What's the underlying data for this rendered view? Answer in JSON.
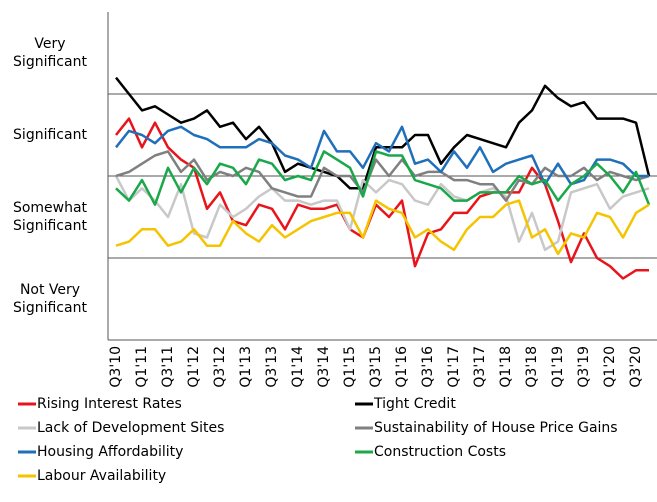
{
  "chart_data": {
    "type": "line",
    "categories": [
      "Q3'10",
      null,
      "Q1'11",
      null,
      "Q3'11",
      null,
      "Q1'12",
      null,
      "Q3'12",
      null,
      "Q1'13",
      null,
      "Q3'13",
      null,
      "Q1'14",
      null,
      "Q3'14",
      null,
      "Q1'15",
      null,
      "Q3'15",
      null,
      "Q1'16",
      null,
      "Q3'16",
      null,
      "Q1'17",
      null,
      "Q3'17",
      null,
      "Q1'18",
      null,
      "Q3'18",
      null,
      "Q1'19",
      null,
      "Q3'19",
      null,
      "Q1'20",
      null,
      "Q3'20",
      null
    ],
    "ylim": [
      0.5,
      4.5
    ],
    "yticks": [
      {
        "value": 1,
        "label": "Not Very Significant"
      },
      {
        "value": 2,
        "label": "Somewhat Significant"
      },
      {
        "value": 3,
        "label": "Significant"
      },
      {
        "value": 4,
        "label": "Very Significant"
      }
    ],
    "grid": true,
    "series": [
      {
        "name": "Rising Interest Rates",
        "color": "#e8141b",
        "values": [
          3.0,
          3.2,
          2.85,
          3.15,
          2.85,
          2.7,
          2.6,
          2.1,
          2.3,
          1.95,
          1.9,
          2.15,
          2.1,
          1.85,
          2.15,
          2.1,
          2.1,
          2.15,
          1.85,
          1.75,
          2.15,
          2.0,
          2.2,
          1.4,
          1.8,
          1.85,
          2.05,
          2.05,
          2.25,
          2.3,
          2.3,
          2.3,
          2.6,
          2.4,
          1.95,
          1.45,
          1.8,
          1.5,
          1.4,
          1.25,
          1.35,
          1.35
        ]
      },
      {
        "name": "Tight Credit",
        "color": "#000000",
        "values": [
          3.7,
          3.5,
          3.3,
          3.35,
          3.25,
          3.15,
          3.2,
          3.3,
          3.1,
          3.15,
          2.95,
          3.1,
          2.9,
          2.55,
          2.65,
          2.6,
          2.55,
          2.5,
          2.35,
          2.35,
          2.85,
          2.85,
          2.85,
          3.0,
          3.0,
          2.65,
          2.85,
          3.0,
          2.95,
          2.9,
          2.85,
          3.15,
          3.3,
          3.6,
          3.45,
          3.35,
          3.4,
          3.2,
          3.2,
          3.2,
          3.15,
          2.5
        ]
      },
      {
        "name": "Lack of Development Sites",
        "color": "#c8c8c8",
        "values": [
          2.5,
          2.2,
          2.35,
          2.2,
          2.0,
          2.4,
          1.8,
          1.75,
          2.15,
          2.0,
          2.1,
          2.25,
          2.35,
          2.2,
          2.2,
          2.15,
          2.2,
          2.2,
          1.85,
          2.45,
          2.3,
          2.45,
          2.4,
          2.2,
          2.15,
          2.4,
          2.25,
          2.2,
          2.3,
          2.35,
          2.25,
          1.7,
          2.05,
          1.6,
          1.7,
          2.3,
          2.35,
          2.4,
          2.1,
          2.25,
          2.3,
          2.35
        ]
      },
      {
        "name": "Sustainability of House Price Gains",
        "color": "#808080",
        "values": [
          2.5,
          2.55,
          2.65,
          2.75,
          2.8,
          2.55,
          2.7,
          2.45,
          2.55,
          2.5,
          2.6,
          2.55,
          2.35,
          2.3,
          2.25,
          2.25,
          2.6,
          2.5,
          2.5,
          2.3,
          2.7,
          2.5,
          2.7,
          2.5,
          2.55,
          2.55,
          2.45,
          2.45,
          2.4,
          2.4,
          2.2,
          2.45,
          2.4,
          2.6,
          2.5,
          2.5,
          2.6,
          2.45,
          2.55,
          2.5,
          2.45,
          2.5
        ]
      },
      {
        "name": "Housing Affordability",
        "color": "#1f6fba",
        "values": [
          2.85,
          3.05,
          3.0,
          2.9,
          3.05,
          3.1,
          3.0,
          2.95,
          2.85,
          2.85,
          2.85,
          2.95,
          2.9,
          2.75,
          2.7,
          2.6,
          3.05,
          2.8,
          2.8,
          2.6,
          2.9,
          2.8,
          3.1,
          2.65,
          2.7,
          2.55,
          2.8,
          2.6,
          2.85,
          2.55,
          2.65,
          2.7,
          2.75,
          2.4,
          2.65,
          2.4,
          2.45,
          2.7,
          2.7,
          2.65,
          2.5,
          2.5
        ]
      },
      {
        "name": "Construction Costs",
        "color": "#1aa84b",
        "values": [
          2.35,
          2.2,
          2.45,
          2.15,
          2.6,
          2.3,
          2.6,
          2.4,
          2.65,
          2.6,
          2.4,
          2.7,
          2.65,
          2.45,
          2.5,
          2.45,
          2.8,
          2.7,
          2.6,
          2.25,
          2.8,
          2.75,
          2.75,
          2.45,
          2.4,
          2.35,
          2.2,
          2.2,
          2.3,
          2.3,
          2.3,
          2.5,
          2.4,
          2.45,
          2.2,
          2.4,
          2.5,
          2.65,
          2.5,
          2.3,
          2.55,
          2.15
        ]
      },
      {
        "name": "Labour Availability",
        "color": "#f5c400",
        "values": [
          1.65,
          1.7,
          1.85,
          1.85,
          1.65,
          1.7,
          1.85,
          1.65,
          1.65,
          1.95,
          1.8,
          1.7,
          1.9,
          1.75,
          1.85,
          1.95,
          2.0,
          2.05,
          2.05,
          1.75,
          2.2,
          2.1,
          2.05,
          1.75,
          1.85,
          1.7,
          1.6,
          1.85,
          2.0,
          2.0,
          2.15,
          2.2,
          1.75,
          1.85,
          1.55,
          1.8,
          1.75,
          2.05,
          2.0,
          1.75,
          2.05,
          2.15
        ]
      }
    ]
  }
}
